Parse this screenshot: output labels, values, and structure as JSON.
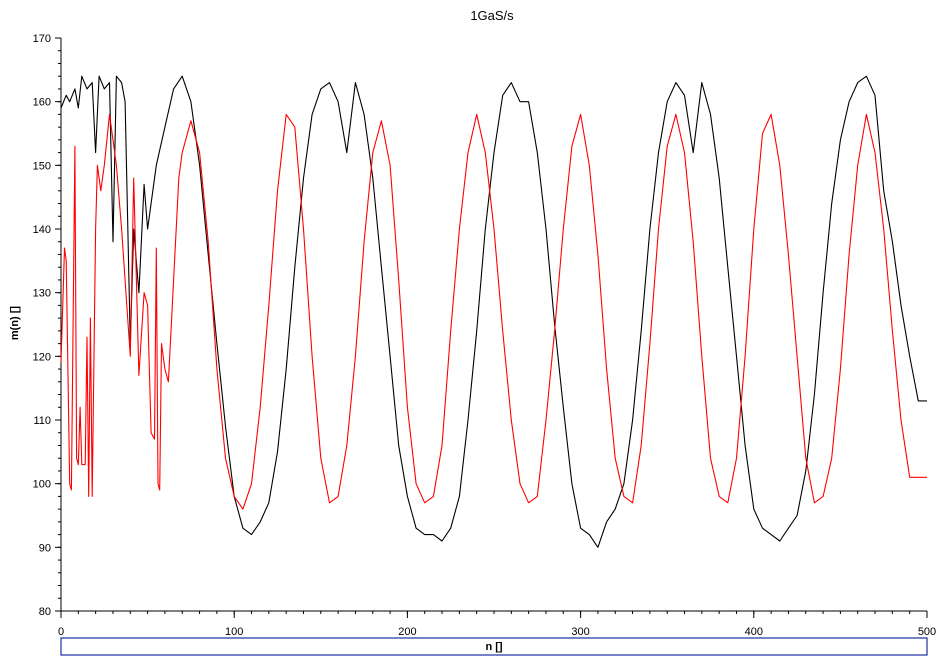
{
  "chart_data": {
    "type": "line",
    "title": "1GaS/s",
    "xlabel": "n []",
    "ylabel": "m(n) []",
    "xlim": [
      0,
      500
    ],
    "ylim": [
      80,
      170
    ],
    "xticks": [
      0,
      100,
      200,
      300,
      400,
      500
    ],
    "yticks": [
      80,
      90,
      100,
      110,
      120,
      130,
      140,
      150,
      160,
      170
    ],
    "grid": false,
    "series": [
      {
        "color": "#000000",
        "x": [
          0,
          3,
          5,
          8,
          10,
          12,
          15,
          18,
          20,
          22,
          25,
          28,
          30,
          32,
          35,
          37,
          40,
          42,
          45,
          48,
          50,
          55,
          60,
          65,
          70,
          75,
          80,
          85,
          90,
          95,
          100,
          105,
          110,
          115,
          120,
          125,
          130,
          135,
          140,
          145,
          150,
          155,
          160,
          165,
          170,
          175,
          180,
          185,
          190,
          195,
          200,
          205,
          210,
          215,
          220,
          225,
          230,
          235,
          240,
          245,
          250,
          255,
          260,
          265,
          270,
          275,
          280,
          285,
          290,
          295,
          300,
          305,
          310,
          315,
          320,
          325,
          330,
          335,
          340,
          345,
          350,
          355,
          360,
          365,
          370,
          375,
          380,
          385,
          390,
          395,
          400,
          405,
          410,
          415,
          420,
          425,
          430,
          435,
          440,
          445,
          450,
          455,
          460,
          465,
          470,
          475,
          480,
          485,
          490,
          495,
          500
        ],
        "y": [
          159,
          161,
          160,
          162,
          159,
          164,
          162,
          163,
          152,
          164,
          162,
          163,
          138,
          164,
          163,
          160,
          122,
          140,
          130,
          147,
          140,
          150,
          156,
          162,
          164,
          160,
          150,
          136,
          122,
          109,
          98,
          93,
          92,
          94,
          97,
          105,
          118,
          134,
          148,
          158,
          162,
          163,
          160,
          152,
          163,
          158,
          148,
          134,
          120,
          106,
          98,
          93,
          92,
          92,
          91,
          93,
          98,
          110,
          124,
          140,
          152,
          161,
          163,
          160,
          160,
          152,
          140,
          125,
          112,
          100,
          93,
          92,
          90,
          94,
          96,
          100,
          110,
          124,
          140,
          152,
          160,
          163,
          161,
          152,
          163,
          158,
          148,
          134,
          120,
          106,
          96,
          93,
          92,
          91,
          93,
          95,
          102,
          114,
          130,
          144,
          154,
          160,
          163,
          164,
          161,
          146,
          138,
          128,
          120,
          113,
          113
        ]
      },
      {
        "color": "#ff0000",
        "x": [
          0,
          2,
          3,
          5,
          6,
          8,
          9,
          10,
          11,
          12,
          14,
          15,
          16,
          17,
          18,
          20,
          21,
          22,
          23,
          25,
          28,
          30,
          32,
          35,
          38,
          40,
          42,
          45,
          48,
          50,
          52,
          54,
          55,
          56,
          57,
          58,
          60,
          62,
          65,
          68,
          70,
          75,
          80,
          85,
          90,
          95,
          100,
          105,
          110,
          115,
          120,
          125,
          130,
          135,
          140,
          145,
          150,
          155,
          160,
          165,
          170,
          175,
          180,
          185,
          190,
          195,
          200,
          205,
          210,
          215,
          220,
          225,
          230,
          235,
          240,
          245,
          250,
          255,
          260,
          265,
          270,
          275,
          280,
          285,
          290,
          295,
          300,
          305,
          310,
          315,
          320,
          325,
          330,
          335,
          340,
          345,
          350,
          355,
          360,
          365,
          370,
          375,
          380,
          385,
          390,
          395,
          400,
          405,
          410,
          415,
          420,
          425,
          430,
          435,
          440,
          445,
          450,
          455,
          460,
          465,
          470,
          475,
          480,
          485,
          490,
          495,
          500
        ],
        "y": [
          119,
          137,
          135,
          100,
          99,
          153,
          104,
          103,
          112,
          103,
          103,
          123,
          98,
          126,
          98,
          140,
          150,
          148,
          146,
          150,
          158,
          154,
          150,
          140,
          128,
          120,
          148,
          117,
          130,
          128,
          108,
          107,
          137,
          100,
          99,
          122,
          118,
          116,
          132,
          148,
          152,
          157,
          152,
          138,
          118,
          104,
          98,
          96,
          100,
          112,
          128,
          146,
          158,
          156,
          140,
          120,
          104,
          97,
          98,
          106,
          120,
          138,
          152,
          157,
          150,
          132,
          112,
          100,
          97,
          98,
          106,
          124,
          140,
          152,
          158,
          152,
          140,
          124,
          110,
          100,
          97,
          98,
          110,
          124,
          140,
          153,
          158,
          150,
          136,
          118,
          104,
          98,
          97,
          106,
          122,
          140,
          153,
          158,
          152,
          138,
          120,
          104,
          98,
          97,
          104,
          120,
          140,
          155,
          158,
          150,
          136,
          120,
          104,
          97,
          98,
          104,
          118,
          136,
          150,
          158,
          152,
          140,
          124,
          110,
          101,
          101,
          101
        ]
      }
    ]
  }
}
